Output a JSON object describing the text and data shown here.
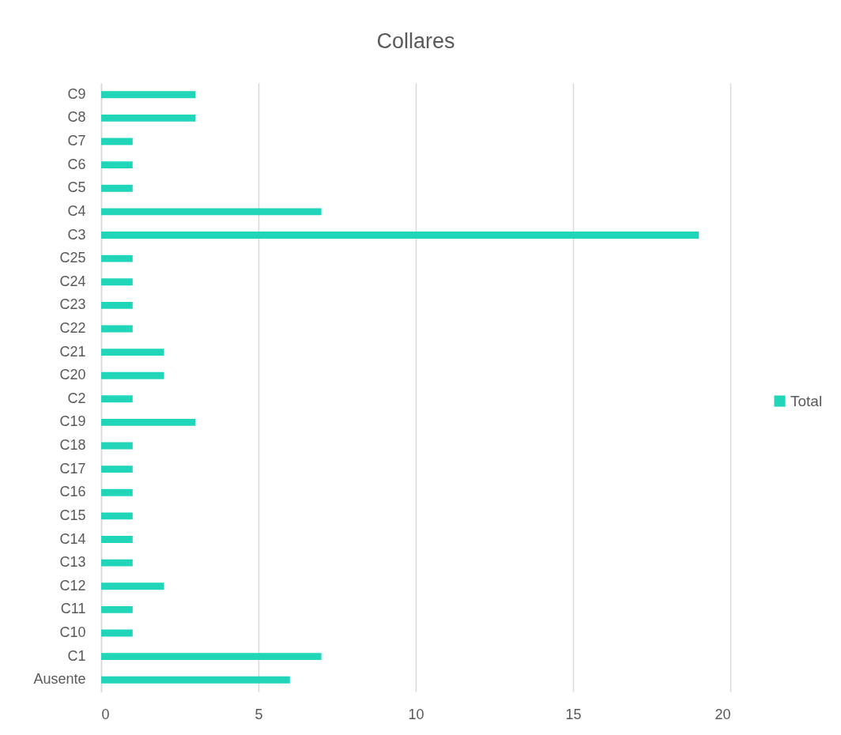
{
  "chart_data": {
    "type": "bar",
    "title": "Collares",
    "orientation": "horizontal",
    "categories": [
      "C9",
      "C8",
      "C7",
      "C6",
      "C5",
      "C4",
      "C3",
      "C25",
      "C24",
      "C23",
      "C22",
      "C21",
      "C20",
      "C2",
      "C19",
      "C18",
      "C17",
      "C16",
      "C15",
      "C14",
      "C13",
      "C12",
      "C11",
      "C10",
      "C1",
      "Ausente"
    ],
    "series": [
      {
        "name": "Total",
        "color": "#20d5b8",
        "values": [
          3,
          3,
          1,
          1,
          1,
          7,
          19,
          1,
          1,
          1,
          1,
          2,
          2,
          1,
          3,
          1,
          1,
          1,
          1,
          1,
          1,
          2,
          1,
          1,
          7,
          6
        ]
      }
    ],
    "xlim": [
      0,
      20
    ],
    "xticks": [
      0,
      5,
      10,
      15,
      20
    ],
    "grid": "x",
    "legend": "right"
  }
}
